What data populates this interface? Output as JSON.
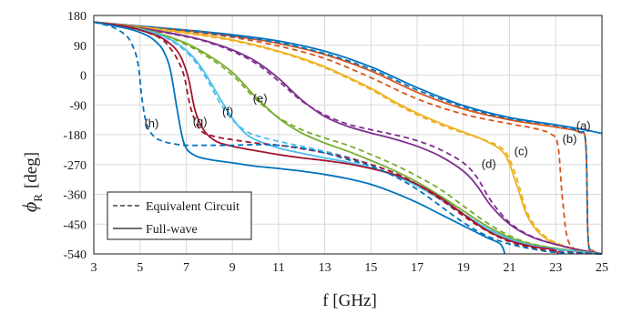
{
  "chart_data": {
    "type": "line",
    "xlabel": "f [GHz]",
    "ylabel_symbol": "ϕ",
    "ylabel_subscript": "R",
    "ylabel_unit": "[deg]",
    "xlim": [
      3,
      25
    ],
    "ylim": [
      -540,
      180
    ],
    "xticks": [
      3,
      5,
      7,
      9,
      11,
      13,
      15,
      17,
      19,
      21,
      23,
      25
    ],
    "yticks": [
      180,
      90,
      0,
      -90,
      -180,
      -270,
      -360,
      -450,
      -540
    ],
    "grid": true,
    "legend": {
      "position": "bottom-left",
      "entries": [
        {
          "label": "Equivalent Circuit",
          "style": "dashed"
        },
        {
          "label": "Full-wave",
          "style": "solid"
        }
      ]
    },
    "colors": {
      "a": "#0072bd",
      "b": "#d95319",
      "c": "#edb120",
      "d": "#7e2f8e",
      "e": "#77ac30",
      "f": "#4dbeee",
      "g": "#a2142f",
      "h": "#0072bd"
    },
    "curve_labels": [
      {
        "text": "(a)",
        "x": 24.2,
        "y": -165
      },
      {
        "text": "(b)",
        "x": 23.6,
        "y": -205
      },
      {
        "text": "(c)",
        "x": 21.5,
        "y": -242
      },
      {
        "text": "(d)",
        "x": 20.1,
        "y": -280
      },
      {
        "text": "(e)",
        "x": 10.2,
        "y": -82
      },
      {
        "text": "(f)",
        "x": 8.8,
        "y": -122
      },
      {
        "text": "(g)",
        "x": 7.6,
        "y": -153
      },
      {
        "text": "(h)",
        "x": 5.5,
        "y": -158
      }
    ],
    "series": [
      {
        "name": "(a)",
        "style": "solid",
        "color": "a",
        "x": [
          3,
          5,
          7,
          9,
          11,
          13,
          15,
          17,
          19,
          21,
          23,
          24,
          25
        ],
        "y": [
          160,
          148,
          136,
          122,
          103,
          72,
          25,
          -38,
          -92,
          -128,
          -150,
          -162,
          -176
        ]
      },
      {
        "name": "(b)",
        "style": "solid",
        "color": "b",
        "x": [
          3,
          5,
          7,
          9,
          11,
          13,
          15,
          17,
          19,
          21,
          23,
          24,
          24.3,
          24.4,
          24.6,
          25
        ],
        "y": [
          160,
          147,
          134,
          118,
          96,
          62,
          12,
          -52,
          -102,
          -135,
          -157,
          -172,
          -210,
          -495,
          -530,
          -540
        ]
      },
      {
        "name": "(b) EC",
        "style": "dashed",
        "color": "b",
        "x": [
          3,
          5,
          7,
          9,
          11,
          13,
          15,
          17,
          19,
          21,
          22,
          22.8,
          23.1,
          23.3,
          23.6,
          24.5,
          25
        ],
        "y": [
          160,
          146,
          132,
          114,
          88,
          50,
          -8,
          -72,
          -118,
          -147,
          -160,
          -178,
          -215,
          -380,
          -510,
          -535,
          -540
        ]
      },
      {
        "name": "(a) EC",
        "style": "dashed",
        "color": "a",
        "x": [
          3,
          5,
          7,
          9,
          11,
          13,
          15,
          17,
          19,
          21,
          23,
          24,
          24.3,
          24.4,
          24.6,
          25
        ],
        "y": [
          160,
          147,
          134,
          118,
          98,
          65,
          18,
          -45,
          -96,
          -131,
          -152,
          -170,
          -205,
          -490,
          -530,
          -540
        ]
      },
      {
        "name": "(c)",
        "style": "solid",
        "color": "c",
        "x": [
          3,
          5,
          7,
          9,
          11,
          13,
          15,
          16,
          17,
          18,
          19,
          20,
          20.8,
          21.3,
          21.8,
          22.5,
          23.5,
          25
        ],
        "y": [
          160,
          145,
          128,
          106,
          72,
          25,
          -40,
          -80,
          -115,
          -145,
          -172,
          -200,
          -240,
          -330,
          -430,
          -490,
          -520,
          -540
        ]
      },
      {
        "name": "(c) EC",
        "style": "dashed",
        "color": "c",
        "x": [
          3,
          5,
          7,
          9,
          11,
          13,
          15,
          16,
          17,
          18,
          19,
          20,
          20.8,
          21.3,
          21.8,
          22.5,
          23.5,
          25
        ],
        "y": [
          160,
          144,
          126,
          104,
          70,
          22,
          -44,
          -84,
          -120,
          -150,
          -175,
          -198,
          -230,
          -310,
          -420,
          -485,
          -518,
          -540
        ]
      },
      {
        "name": "(d)",
        "style": "solid",
        "color": "d",
        "x": [
          3,
          5,
          7,
          8,
          9,
          10,
          11,
          12,
          13,
          14,
          15,
          16,
          17,
          18,
          19,
          19.6,
          20.2,
          21,
          22,
          23.5,
          25
        ],
        "y": [
          160,
          142,
          118,
          100,
          76,
          42,
          -10,
          -75,
          -125,
          -155,
          -175,
          -193,
          -215,
          -245,
          -290,
          -335,
          -395,
          -450,
          -490,
          -520,
          -540
        ]
      },
      {
        "name": "(d) EC",
        "style": "dashed",
        "color": "d",
        "x": [
          3,
          5,
          7,
          8,
          9,
          10,
          11,
          12,
          13,
          14,
          15,
          16,
          17,
          18,
          19,
          19.6,
          20.2,
          21,
          22,
          23.5,
          25
        ],
        "y": [
          160,
          141,
          116,
          98,
          72,
          36,
          -18,
          -78,
          -120,
          -148,
          -165,
          -180,
          -198,
          -225,
          -265,
          -310,
          -380,
          -445,
          -488,
          -520,
          -540
        ]
      },
      {
        "name": "(e)",
        "style": "solid",
        "color": "e",
        "x": [
          3,
          5,
          6,
          7,
          8,
          9,
          10,
          11,
          12,
          13,
          14,
          15,
          16,
          17,
          18,
          19,
          20,
          21,
          22,
          23.5,
          25
        ],
        "y": [
          160,
          140,
          122,
          96,
          58,
          8,
          -65,
          -130,
          -175,
          -205,
          -230,
          -258,
          -288,
          -323,
          -365,
          -410,
          -455,
          -490,
          -512,
          -528,
          -540
        ]
      },
      {
        "name": "(e) EC",
        "style": "dashed",
        "color": "e",
        "x": [
          3,
          5,
          6,
          7,
          8,
          9,
          10,
          11,
          12,
          13,
          14,
          15,
          16,
          17,
          18,
          19,
          20,
          21,
          22,
          23.5,
          25
        ],
        "y": [
          160,
          139,
          120,
          92,
          52,
          0,
          -72,
          -128,
          -165,
          -190,
          -212,
          -240,
          -270,
          -305,
          -345,
          -395,
          -445,
          -485,
          -510,
          -528,
          -540
        ]
      },
      {
        "name": "(f)",
        "style": "solid",
        "color": "f",
        "x": [
          3,
          5,
          6,
          6.5,
          7,
          7.5,
          8,
          8.5,
          9,
          9.5,
          10,
          11,
          12,
          13,
          14,
          15,
          16,
          17,
          18,
          19,
          20,
          21,
          22,
          23.5,
          25
        ],
        "y": [
          160,
          138,
          118,
          100,
          75,
          38,
          -15,
          -75,
          -130,
          -172,
          -195,
          -220,
          -236,
          -250,
          -263,
          -280,
          -303,
          -335,
          -375,
          -420,
          -462,
          -495,
          -515,
          -530,
          -540
        ]
      },
      {
        "name": "(f) EC",
        "style": "dashed",
        "color": "f",
        "x": [
          3,
          5,
          6,
          6.5,
          7,
          7.5,
          8,
          8.5,
          9,
          9.5,
          10,
          11,
          12,
          13,
          14,
          15,
          16,
          17,
          18,
          19,
          20,
          21,
          22,
          23.5,
          25
        ],
        "y": [
          160,
          137,
          116,
          97,
          70,
          30,
          -25,
          -88,
          -135,
          -165,
          -182,
          -200,
          -215,
          -230,
          -248,
          -270,
          -295,
          -330,
          -370,
          -418,
          -462,
          -495,
          -515,
          -530,
          -540
        ]
      },
      {
        "name": "(g)",
        "style": "solid",
        "color": "g",
        "x": [
          3,
          4.5,
          5.5,
          6,
          6.5,
          6.8,
          7.1,
          7.4,
          7.8,
          8.3,
          9,
          10,
          11,
          12,
          13,
          14,
          15,
          16,
          17,
          18,
          19,
          20,
          21,
          22,
          22.9,
          23.1
        ],
        "y": [
          160,
          145,
          125,
          110,
          82,
          50,
          -10,
          -110,
          -170,
          -200,
          -215,
          -228,
          -240,
          -250,
          -258,
          -268,
          -282,
          -300,
          -330,
          -370,
          -420,
          -468,
          -500,
          -518,
          -527,
          -540
        ]
      },
      {
        "name": "(g) EC",
        "style": "dashed",
        "color": "g",
        "x": [
          3,
          4.5,
          5.5,
          6,
          6.3,
          6.6,
          6.9,
          7.2,
          7.6,
          8.2,
          9,
          10,
          11,
          12,
          13,
          14,
          15,
          16,
          17,
          18,
          19,
          20,
          21,
          22,
          23,
          25
        ],
        "y": [
          160,
          145,
          124,
          105,
          82,
          50,
          0,
          -100,
          -165,
          -185,
          -195,
          -205,
          -212,
          -222,
          -235,
          -250,
          -270,
          -295,
          -330,
          -375,
          -425,
          -470,
          -503,
          -522,
          -532,
          -540
        ]
      },
      {
        "name": "(h)",
        "style": "solid",
        "color": "h",
        "x": [
          3,
          4.5,
          5.3,
          5.7,
          6,
          6.3,
          6.6,
          6.9,
          7.3,
          8,
          9,
          10,
          11,
          12,
          13,
          14,
          15,
          16,
          17,
          18,
          19,
          20,
          20.6,
          20.8
        ],
        "y": [
          160,
          140,
          120,
          100,
          75,
          20,
          -100,
          -205,
          -240,
          -255,
          -265,
          -275,
          -282,
          -290,
          -300,
          -313,
          -330,
          -355,
          -385,
          -420,
          -455,
          -490,
          -510,
          -540
        ]
      },
      {
        "name": "(h) EC",
        "style": "dashed",
        "color": "h",
        "x": [
          3,
          3.8,
          4.3,
          4.6,
          4.9,
          5.1,
          5.3,
          5.6,
          6,
          6.5,
          7,
          8,
          9,
          10,
          11,
          12,
          13,
          14,
          15,
          16,
          17,
          18,
          19,
          20,
          21,
          22,
          23,
          25
        ],
        "y": [
          160,
          145,
          125,
          100,
          40,
          -80,
          -150,
          -185,
          -200,
          -208,
          -212,
          -212,
          -212,
          -210,
          -212,
          -220,
          -235,
          -255,
          -275,
          -305,
          -345,
          -395,
          -445,
          -485,
          -510,
          -525,
          -535,
          -540
        ]
      }
    ]
  }
}
